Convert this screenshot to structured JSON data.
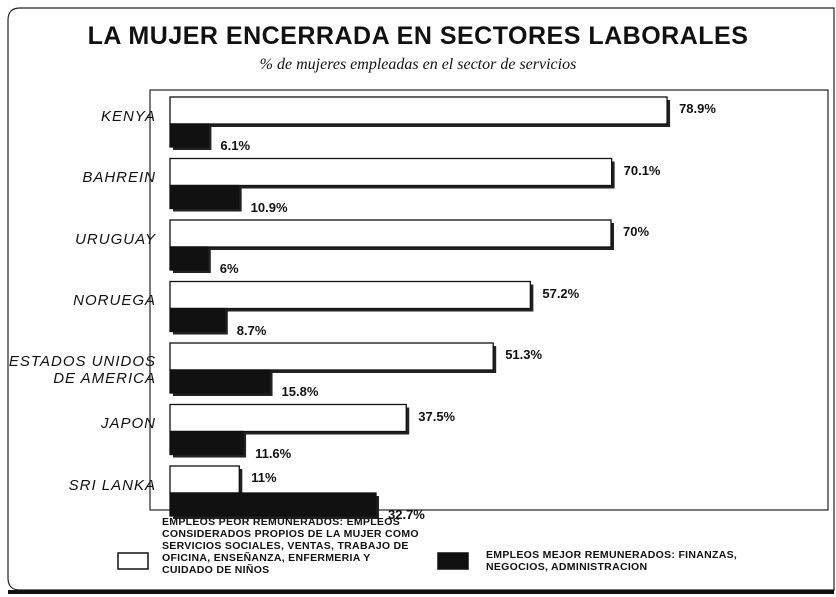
{
  "chart_data": {
    "type": "bar",
    "orientation": "horizontal",
    "title": "LA MUJER ENCERRADA EN SECTORES LABORALES",
    "subtitle": "% de mujeres empleadas en el sector de servicios",
    "categories": [
      "KENYA",
      "BAHREIN",
      "URUGUAY",
      "NORUEGA",
      "ESTADOS UNIDOS DE AMERICA",
      "JAPON",
      "SRI LANKA"
    ],
    "series": [
      {
        "name": "EMPLEOS PEOR REMUNERADOS: EMPLEOS CONSIDERADOS PROPIOS DE LA MUJER COMO SERVICIOS SOCIALES, VENTAS, TRABAJO DE OFICINA, ENSEÑANZA, ENFERMERIA Y CUIDADO DE NIÑOS",
        "color": "#ffffff",
        "values": [
          78.9,
          70.1,
          70,
          57.2,
          51.3,
          37.5,
          11
        ],
        "value_labels": [
          "78.9%",
          "70.1%",
          "70%",
          "57.2%",
          "51.3%",
          "37.5%",
          "11%"
        ]
      },
      {
        "name": "EMPLEOS MEJOR REMUNERADOS: FINANZAS, NEGOCIOS, ADMINISTRACION",
        "color": "#111111",
        "values": [
          6.1,
          10.9,
          6,
          8.7,
          15.8,
          11.6,
          32.7
        ],
        "value_labels": [
          "6.1%",
          "10.9%",
          "6%",
          "8.7%",
          "15.8%",
          "11.6%",
          "32.7%"
        ]
      }
    ]
  }
}
